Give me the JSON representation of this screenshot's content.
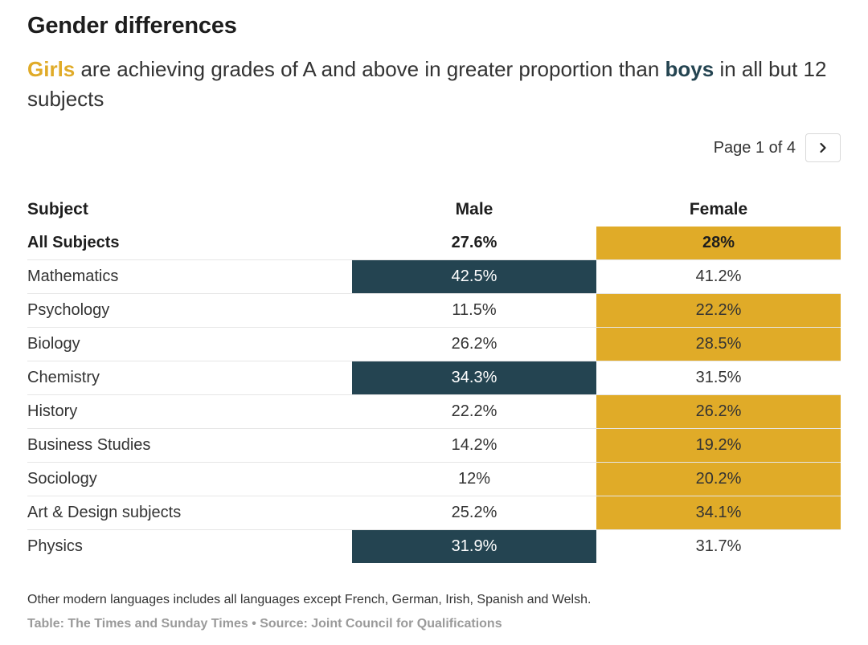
{
  "header": {
    "title": "Gender differences",
    "subtitle_girls": "Girls",
    "subtitle_mid": " are achieving grades of A and above in greater proportion than ",
    "subtitle_boys": "boys",
    "subtitle_end": " in all but 12 subjects"
  },
  "pager": {
    "text": "Page 1 of 4",
    "next_icon": "chevron-right-icon"
  },
  "colors": {
    "male_highlight": "#244451",
    "female_highlight": "#e0ab28"
  },
  "chart_data": {
    "type": "table",
    "columns": [
      "Subject",
      "Male",
      "Female"
    ],
    "rows": [
      {
        "subject": "All Subjects",
        "male": "27.6%",
        "female": "28%",
        "higher": "female",
        "total": true
      },
      {
        "subject": "Mathematics",
        "male": "42.5%",
        "female": "41.2%",
        "higher": "male"
      },
      {
        "subject": "Psychology",
        "male": "11.5%",
        "female": "22.2%",
        "higher": "female"
      },
      {
        "subject": "Biology",
        "male": "26.2%",
        "female": "28.5%",
        "higher": "female"
      },
      {
        "subject": "Chemistry",
        "male": "34.3%",
        "female": "31.5%",
        "higher": "male"
      },
      {
        "subject": "History",
        "male": "22.2%",
        "female": "26.2%",
        "higher": "female"
      },
      {
        "subject": "Business Studies",
        "male": "14.2%",
        "female": "19.2%",
        "higher": "female"
      },
      {
        "subject": "Sociology",
        "male": "12%",
        "female": "20.2%",
        "higher": "female"
      },
      {
        "subject": "Art & Design subjects",
        "male": "25.2%",
        "female": "34.1%",
        "higher": "female"
      },
      {
        "subject": "Physics",
        "male": "31.9%",
        "female": "31.7%",
        "higher": "male"
      }
    ]
  },
  "footer": {
    "note": "Other modern languages includes all languages except French, German, Irish, Spanish and Welsh.",
    "source": "Table: The Times and Sunday Times • Source: Joint Council for Qualifications"
  }
}
